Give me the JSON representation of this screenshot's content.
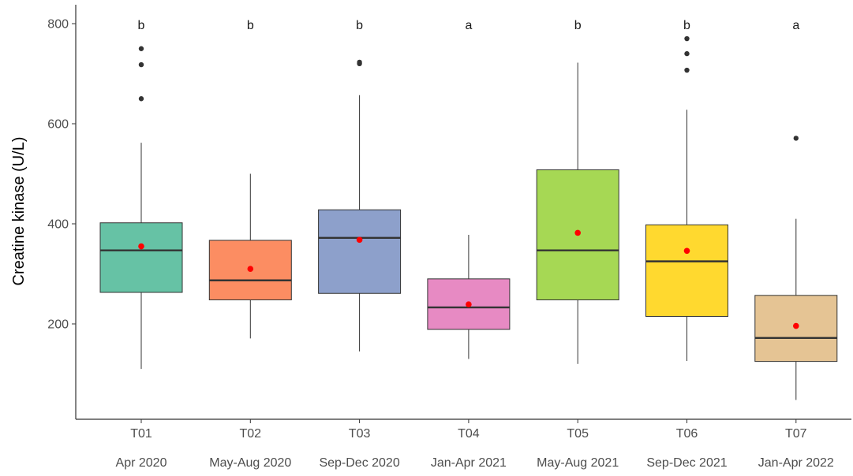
{
  "chart_data": {
    "type": "box",
    "ylabel": "Creatine kinase (U/L)",
    "ylim": [
      0,
      840
    ],
    "yticks": [
      200,
      400,
      600,
      800
    ],
    "grid": false,
    "groups": [
      {
        "label": "T01",
        "period": "Apr 2020",
        "color": "#66c2a5",
        "sig": "b",
        "min": 110,
        "q1": 263,
        "median": 347,
        "q3": 402,
        "max": 562,
        "mean": 355,
        "outliers": [
          650,
          718,
          750
        ]
      },
      {
        "label": "T02",
        "period": "May-Aug 2020",
        "color": "#fc8d62",
        "sig": "b",
        "min": 171,
        "q1": 248,
        "median": 287,
        "q3": 367,
        "max": 500,
        "mean": 310,
        "outliers": []
      },
      {
        "label": "T03",
        "period": "Sep-Dec 2020",
        "color": "#8da0cb",
        "sig": "b",
        "min": 145,
        "q1": 261,
        "median": 372,
        "q3": 428,
        "max": 657,
        "mean": 368,
        "outliers": [
          720,
          723
        ]
      },
      {
        "label": "T04",
        "period": "Jan-Apr 2021",
        "color": "#e78ac3",
        "sig": "a",
        "min": 130,
        "q1": 189,
        "median": 233,
        "q3": 290,
        "max": 378,
        "mean": 239,
        "outliers": []
      },
      {
        "label": "T05",
        "period": "May-Aug 2021",
        "color": "#a6d854",
        "sig": "b",
        "min": 120,
        "q1": 248,
        "median": 347,
        "q3": 508,
        "max": 722,
        "mean": 382,
        "outliers": []
      },
      {
        "label": "T06",
        "period": "Sep-Dec 2021",
        "color": "#ffd92f",
        "sig": "b",
        "min": 126,
        "q1": 215,
        "median": 325,
        "q3": 398,
        "max": 628,
        "mean": 346,
        "outliers": [
          707,
          740,
          770
        ]
      },
      {
        "label": "T07",
        "period": "Jan-Apr 2022",
        "color": "#e5c494",
        "sig": "a",
        "min": 48,
        "q1": 125,
        "median": 172,
        "q3": 257,
        "max": 410,
        "mean": 196,
        "outliers": [
          571
        ]
      }
    ],
    "colors": {
      "box_outline": "#333333",
      "median_line": "#333333",
      "whisker": "#333333",
      "outlier": "#333333",
      "mean_point": "#ff0000",
      "axis": "#333333"
    }
  }
}
